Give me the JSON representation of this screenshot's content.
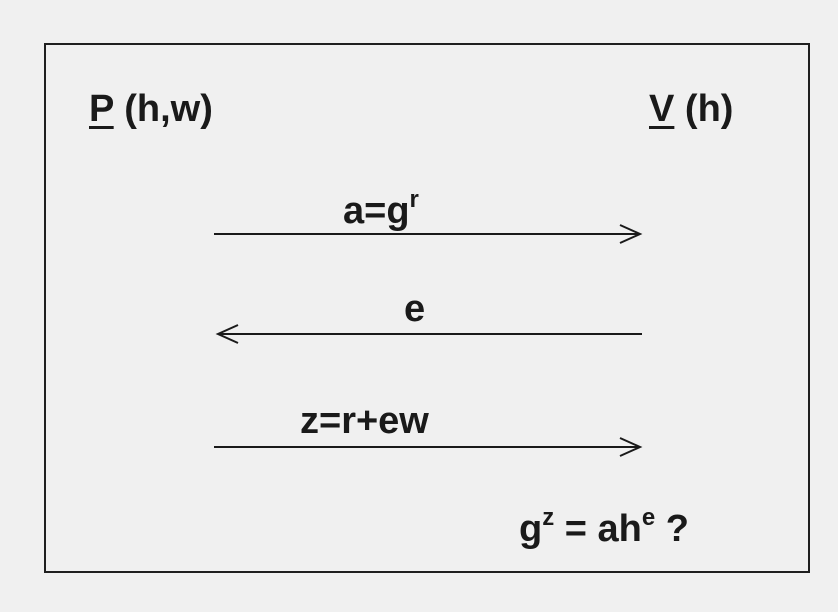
{
  "prover": {
    "name": "P",
    "params": "(h,w)"
  },
  "verifier": {
    "name": "V",
    "params": "(h)"
  },
  "messages": [
    {
      "base": "a=g",
      "sup": "r",
      "direction": "right"
    },
    {
      "base": "e",
      "sup": "",
      "direction": "left"
    },
    {
      "base": "z=r+ew",
      "sup": "",
      "direction": "right"
    }
  ],
  "check": {
    "part1": "g",
    "sup1": "z",
    "part2": " = ah",
    "sup2": "e",
    "part3": "?"
  }
}
